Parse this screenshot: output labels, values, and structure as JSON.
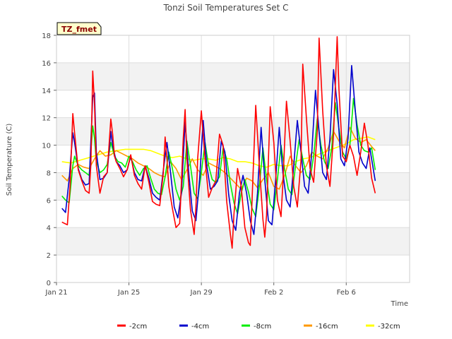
{
  "chart_data": {
    "type": "line",
    "title": "Tonzi Soil Temperatures Set C",
    "xlabel": "Time",
    "ylabel": "Soil Temperature (C)",
    "badge": "TZ_fmet",
    "xlim": [
      0,
      19.5
    ],
    "ylim": [
      0,
      18
    ],
    "yticks": [
      0,
      2,
      4,
      6,
      8,
      10,
      12,
      14,
      16,
      18
    ],
    "xticks": [
      {
        "value": 0,
        "label": "Jan 21"
      },
      {
        "value": 4,
        "label": "Jan 25"
      },
      {
        "value": 8,
        "label": "Jan 29"
      },
      {
        "value": 12,
        "label": "Feb 2"
      },
      {
        "value": 16,
        "label": "Feb 6"
      }
    ],
    "grid": true,
    "banded_background": true,
    "legend_position": "bottom",
    "x_units": "days since Jan 21",
    "series": [
      {
        "name": "-2cm",
        "color": "#ff0000",
        "x": [
          0.3,
          0.45,
          0.6,
          0.75,
          0.9,
          1.0,
          1.2,
          1.4,
          1.6,
          1.8,
          1.9,
          2.0,
          2.1,
          2.2,
          2.4,
          2.6,
          2.8,
          3.0,
          3.1,
          3.2,
          3.3,
          3.5,
          3.7,
          3.9,
          4.1,
          4.3,
          4.5,
          4.7,
          4.9,
          5.1,
          5.3,
          5.5,
          5.7,
          5.9,
          6.0,
          6.1,
          6.2,
          6.4,
          6.6,
          6.8,
          7.0,
          7.1,
          7.2,
          7.4,
          7.6,
          7.7,
          7.8,
          8.0,
          8.2,
          8.4,
          8.6,
          8.8,
          9.0,
          9.2,
          9.4,
          9.6,
          9.7,
          9.8,
          10.0,
          10.2,
          10.4,
          10.6,
          10.7,
          10.8,
          11.0,
          11.2,
          11.4,
          11.5,
          11.6,
          11.8,
          12.0,
          12.2,
          12.4,
          12.5,
          12.7,
          12.9,
          13.1,
          13.3,
          13.5,
          13.6,
          13.8,
          14.0,
          14.2,
          14.4,
          14.5,
          14.7,
          14.9,
          15.1,
          15.3,
          15.5,
          15.6,
          15.8,
          16.0,
          16.2,
          16.4,
          16.6,
          16.8,
          17.0,
          17.2,
          17.4,
          17.6
        ],
        "y": [
          4.4,
          4.3,
          4.2,
          7.0,
          12.3,
          10.9,
          8.2,
          7.4,
          6.7,
          6.5,
          8.6,
          15.4,
          13.0,
          8.5,
          6.5,
          7.7,
          8.0,
          11.9,
          10.8,
          9.2,
          8.8,
          8.3,
          7.7,
          8.2,
          9.3,
          7.8,
          7.2,
          6.8,
          8.5,
          7.3,
          5.9,
          5.7,
          5.6,
          8.0,
          10.6,
          9.0,
          7.0,
          5.4,
          4.0,
          4.3,
          10.5,
          12.6,
          9.0,
          5.3,
          3.5,
          5.5,
          9.1,
          12.5,
          9.0,
          6.2,
          6.9,
          7.4,
          10.8,
          10.0,
          5.9,
          3.5,
          2.5,
          5.0,
          8.3,
          7.0,
          4.0,
          2.9,
          2.7,
          6.0,
          12.9,
          8.5,
          4.6,
          3.3,
          4.9,
          12.8,
          10.2,
          6.0,
          4.8,
          7.2,
          13.2,
          10.3,
          7.0,
          5.5,
          8.9,
          15.9,
          12.0,
          8.3,
          7.3,
          11.0,
          17.8,
          12.5,
          8.5,
          7.0,
          10.8,
          17.9,
          14.0,
          9.2,
          8.8,
          10.0,
          9.2,
          7.8,
          9.5,
          11.6,
          10.0,
          7.6,
          6.5
        ]
      },
      {
        "name": "-4cm",
        "color": "#0000cc",
        "x": [
          0.3,
          0.5,
          0.7,
          0.9,
          1.0,
          1.2,
          1.4,
          1.6,
          1.8,
          2.0,
          2.1,
          2.2,
          2.4,
          2.6,
          2.8,
          3.0,
          3.1,
          3.3,
          3.5,
          3.7,
          3.9,
          4.1,
          4.3,
          4.5,
          4.7,
          4.9,
          5.1,
          5.3,
          5.5,
          5.7,
          5.9,
          6.1,
          6.3,
          6.5,
          6.7,
          6.9,
          7.1,
          7.3,
          7.5,
          7.7,
          7.9,
          8.1,
          8.3,
          8.5,
          8.7,
          8.9,
          9.1,
          9.3,
          9.5,
          9.7,
          9.9,
          10.1,
          10.3,
          10.5,
          10.7,
          10.9,
          11.1,
          11.3,
          11.5,
          11.7,
          11.9,
          12.1,
          12.3,
          12.5,
          12.7,
          12.9,
          13.1,
          13.3,
          13.5,
          13.7,
          13.9,
          14.1,
          14.3,
          14.5,
          14.7,
          14.9,
          15.1,
          15.3,
          15.5,
          15.7,
          15.9,
          16.1,
          16.3,
          16.5,
          16.7,
          16.9,
          17.1,
          17.3,
          17.6
        ],
        "y": [
          5.4,
          5.1,
          7.5,
          10.9,
          10.2,
          8.3,
          7.5,
          7.1,
          7.2,
          13.5,
          13.8,
          9.5,
          7.5,
          7.6,
          8.0,
          11.0,
          10.0,
          8.8,
          8.5,
          8.0,
          8.2,
          9.2,
          8.0,
          7.5,
          7.4,
          8.5,
          7.6,
          6.5,
          6.2,
          6.0,
          8.2,
          10.2,
          8.0,
          5.5,
          4.7,
          6.5,
          11.7,
          8.0,
          5.2,
          4.5,
          7.5,
          11.8,
          8.5,
          6.8,
          7.0,
          7.4,
          10.3,
          9.5,
          6.5,
          4.5,
          3.8,
          6.5,
          7.8,
          6.5,
          4.5,
          3.5,
          6.5,
          11.3,
          7.5,
          4.5,
          4.2,
          7.5,
          11.3,
          8.0,
          6.0,
          5.5,
          8.5,
          11.8,
          9.5,
          7.0,
          6.5,
          9.5,
          14.0,
          11.0,
          8.0,
          7.5,
          10.5,
          15.5,
          13.0,
          9.0,
          8.5,
          10.5,
          15.8,
          12.5,
          9.5,
          8.7,
          8.3,
          9.8,
          7.4
        ]
      },
      {
        "name": "-8cm",
        "color": "#00ee00",
        "x": [
          0.3,
          0.5,
          0.7,
          0.9,
          1.0,
          1.2,
          1.4,
          1.6,
          1.8,
          2.0,
          2.1,
          2.2,
          2.4,
          2.6,
          2.8,
          3.0,
          3.2,
          3.4,
          3.6,
          3.8,
          4.0,
          4.2,
          4.4,
          4.6,
          4.8,
          5.0,
          5.2,
          5.4,
          5.6,
          5.8,
          6.0,
          6.2,
          6.4,
          6.6,
          6.8,
          7.0,
          7.2,
          7.4,
          7.6,
          7.8,
          8.0,
          8.2,
          8.4,
          8.6,
          8.8,
          9.0,
          9.2,
          9.4,
          9.6,
          9.8,
          10.0,
          10.2,
          10.4,
          10.6,
          10.8,
          11.0,
          11.2,
          11.4,
          11.6,
          11.8,
          12.0,
          12.2,
          12.4,
          12.6,
          12.8,
          13.0,
          13.2,
          13.4,
          13.6,
          13.8,
          14.0,
          14.2,
          14.4,
          14.6,
          14.8,
          15.0,
          15.2,
          15.4,
          15.6,
          15.8,
          16.0,
          16.2,
          16.4,
          16.6,
          16.8,
          17.0,
          17.2,
          17.4,
          17.6
        ],
        "y": [
          6.3,
          6.0,
          5.8,
          8.5,
          9.2,
          8.5,
          8.2,
          8.0,
          7.8,
          11.4,
          10.5,
          8.8,
          8.0,
          8.2,
          8.6,
          10.2,
          9.2,
          8.8,
          8.7,
          8.4,
          9.2,
          8.8,
          8.2,
          7.8,
          8.3,
          8.5,
          7.6,
          6.8,
          6.5,
          6.4,
          7.7,
          9.5,
          8.3,
          6.8,
          6.0,
          7.0,
          10.3,
          8.5,
          6.5,
          6.1,
          8.0,
          10.2,
          8.5,
          7.5,
          7.3,
          7.7,
          9.8,
          9.0,
          7.2,
          5.8,
          5.0,
          6.5,
          7.5,
          6.6,
          5.4,
          4.8,
          7.0,
          9.8,
          7.5,
          5.7,
          5.3,
          7.5,
          10.0,
          8.2,
          6.8,
          6.4,
          8.5,
          10.4,
          9.0,
          7.8,
          7.5,
          9.2,
          11.9,
          10.0,
          8.8,
          8.3,
          9.8,
          13.1,
          11.2,
          9.5,
          9.0,
          10.0,
          13.4,
          11.5,
          10.0,
          9.6,
          9.5,
          9.8,
          8.2
        ]
      },
      {
        "name": "-16cm",
        "color": "#ff9900",
        "x": [
          0.3,
          0.6,
          0.9,
          1.2,
          1.5,
          1.8,
          2.1,
          2.4,
          2.7,
          3.0,
          3.3,
          3.6,
          3.9,
          4.2,
          4.5,
          4.8,
          5.1,
          5.4,
          5.7,
          6.0,
          6.3,
          6.6,
          6.9,
          7.2,
          7.5,
          7.8,
          8.1,
          8.4,
          8.7,
          9.0,
          9.3,
          9.6,
          9.9,
          10.2,
          10.5,
          10.8,
          11.1,
          11.4,
          11.7,
          12.0,
          12.3,
          12.6,
          12.9,
          13.2,
          13.5,
          13.8,
          14.1,
          14.4,
          14.7,
          15.0,
          15.3,
          15.6,
          15.9,
          16.2,
          16.5,
          16.8,
          17.1,
          17.4,
          17.6
        ],
        "y": [
          7.8,
          7.4,
          8.3,
          8.6,
          8.4,
          8.3,
          9.0,
          9.6,
          9.2,
          9.3,
          9.6,
          9.4,
          9.2,
          9.0,
          8.7,
          8.5,
          8.3,
          8.0,
          7.8,
          7.7,
          8.8,
          8.3,
          7.5,
          8.2,
          9.0,
          8.2,
          7.8,
          8.7,
          8.5,
          8.3,
          8.0,
          7.6,
          7.2,
          6.8,
          7.6,
          7.4,
          6.9,
          7.5,
          8.0,
          7.0,
          6.8,
          7.8,
          9.2,
          8.5,
          8.0,
          8.5,
          9.5,
          9.2,
          9.0,
          9.8,
          11.0,
          10.3,
          9.8,
          11.3,
          10.5,
          10.2,
          10.4,
          9.9,
          9.6
        ]
      },
      {
        "name": "-32cm",
        "color": "#ffff00",
        "x": [
          0.3,
          0.8,
          1.3,
          1.8,
          2.3,
          2.8,
          3.3,
          3.8,
          4.3,
          4.8,
          5.2,
          5.6,
          6.0,
          6.4,
          6.8,
          7.2,
          7.6,
          8.0,
          8.4,
          8.8,
          9.2,
          9.6,
          10.0,
          10.4,
          10.8,
          11.2,
          11.6,
          12.0,
          12.4,
          12.8,
          13.2,
          13.6,
          14.0,
          14.4,
          14.8,
          15.2,
          15.6,
          16.0,
          16.4,
          16.8,
          17.2,
          17.6
        ],
        "y": [
          8.8,
          8.7,
          8.9,
          9.1,
          9.3,
          9.5,
          9.6,
          9.7,
          9.7,
          9.7,
          9.6,
          9.4,
          9.2,
          9.1,
          9.2,
          9.0,
          8.9,
          9.0,
          9.0,
          8.9,
          9.1,
          9.0,
          8.8,
          8.8,
          8.7,
          8.5,
          8.4,
          8.6,
          8.5,
          8.5,
          8.8,
          9.0,
          9.1,
          9.3,
          9.5,
          9.7,
          9.9,
          10.1,
          10.4,
          10.5,
          10.6,
          10.4
        ]
      }
    ]
  }
}
